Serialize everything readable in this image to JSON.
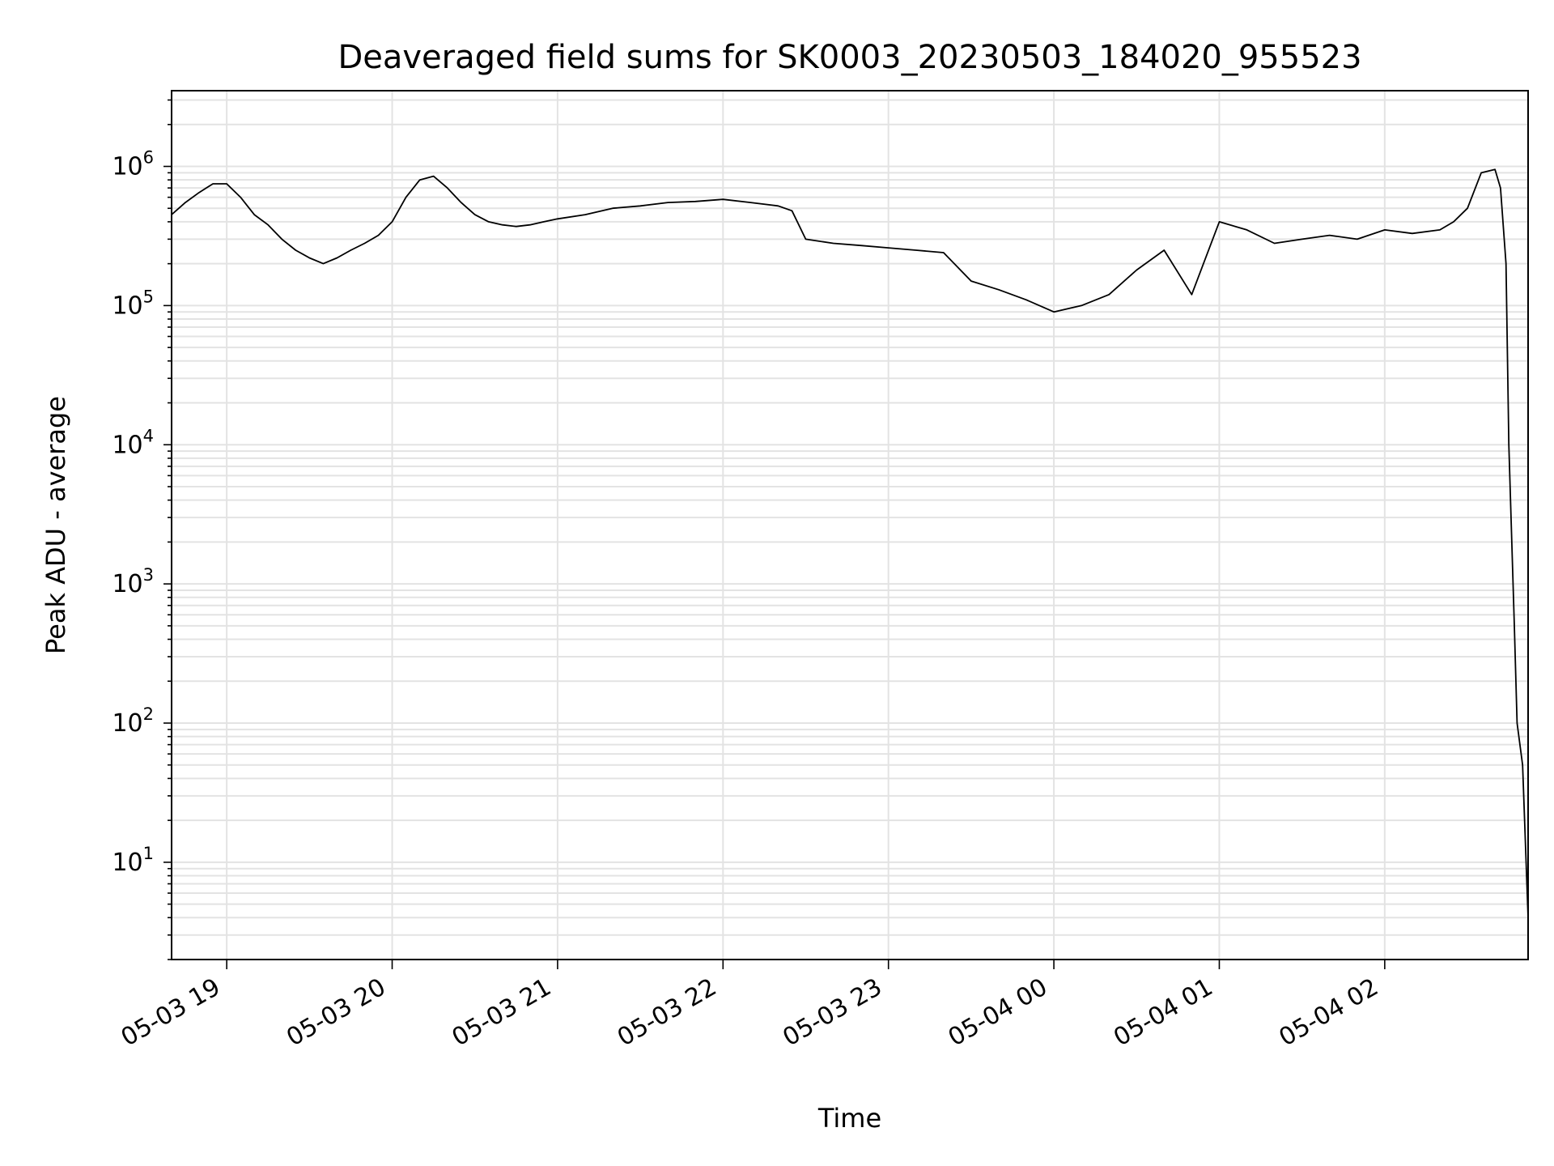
{
  "chart_data": {
    "type": "line",
    "title": "Deaveraged field sums for SK0003_20230503_184020_955523",
    "xlabel": "Time",
    "ylabel": "Peak ADU - average",
    "yscale": "log",
    "ylim": [
      2,
      3500000
    ],
    "xlim": [
      "2023-05-03 18:40",
      "2023-05-04 02:52"
    ],
    "grid": true,
    "line_color": "#000000",
    "x_ticks": [
      {
        "value": "2023-05-03 19:00",
        "label": "05-03 19"
      },
      {
        "value": "2023-05-03 20:00",
        "label": "05-03 20"
      },
      {
        "value": "2023-05-03 21:00",
        "label": "05-03 21"
      },
      {
        "value": "2023-05-03 22:00",
        "label": "05-03 22"
      },
      {
        "value": "2023-05-03 23:00",
        "label": "05-03 23"
      },
      {
        "value": "2023-05-04 00:00",
        "label": "05-04 00"
      },
      {
        "value": "2023-05-04 01:00",
        "label": "05-04 01"
      },
      {
        "value": "2023-05-04 02:00",
        "label": "05-04 02"
      }
    ],
    "y_ticks": [
      {
        "value": 10,
        "exp": "1"
      },
      {
        "value": 100,
        "exp": "2"
      },
      {
        "value": 1000,
        "exp": "3"
      },
      {
        "value": 10000,
        "exp": "4"
      },
      {
        "value": 100000,
        "exp": "5"
      },
      {
        "value": 1000000,
        "exp": "6"
      }
    ],
    "series": [
      {
        "x": [
          "2023-05-03 18:40",
          "2023-05-03 18:45",
          "2023-05-03 18:50",
          "2023-05-03 18:55",
          "2023-05-03 19:00",
          "2023-05-03 19:05",
          "2023-05-03 19:10",
          "2023-05-03 19:15",
          "2023-05-03 19:20",
          "2023-05-03 19:25",
          "2023-05-03 19:30",
          "2023-05-03 19:35",
          "2023-05-03 19:40",
          "2023-05-03 19:45",
          "2023-05-03 19:50",
          "2023-05-03 19:55",
          "2023-05-03 20:00",
          "2023-05-03 20:05",
          "2023-05-03 20:10",
          "2023-05-03 20:15",
          "2023-05-03 20:20",
          "2023-05-03 20:25",
          "2023-05-03 20:30",
          "2023-05-03 20:35",
          "2023-05-03 20:40",
          "2023-05-03 20:45",
          "2023-05-03 20:50",
          "2023-05-03 20:55",
          "2023-05-03 21:00",
          "2023-05-03 21:10",
          "2023-05-03 21:20",
          "2023-05-03 21:30",
          "2023-05-03 21:40",
          "2023-05-03 21:50",
          "2023-05-03 22:00",
          "2023-05-03 22:10",
          "2023-05-03 22:20",
          "2023-05-03 22:25",
          "2023-05-03 22:30",
          "2023-05-03 22:40",
          "2023-05-03 22:50",
          "2023-05-03 23:00",
          "2023-05-03 23:10",
          "2023-05-03 23:20",
          "2023-05-03 23:30",
          "2023-05-03 23:40",
          "2023-05-03 23:50",
          "2023-05-04 00:00",
          "2023-05-04 00:10",
          "2023-05-04 00:20",
          "2023-05-04 00:30",
          "2023-05-04 00:40",
          "2023-05-04 00:50",
          "2023-05-04 01:00",
          "2023-05-04 01:10",
          "2023-05-04 01:20",
          "2023-05-04 01:30",
          "2023-05-04 01:40",
          "2023-05-04 01:50",
          "2023-05-04 02:00",
          "2023-05-04 02:10",
          "2023-05-04 02:20",
          "2023-05-04 02:25",
          "2023-05-04 02:30",
          "2023-05-04 02:35",
          "2023-05-04 02:40",
          "2023-05-04 02:42",
          "2023-05-04 02:44",
          "2023-05-04 02:45",
          "2023-05-04 02:47",
          "2023-05-04 02:48",
          "2023-05-04 02:50",
          "2023-05-04 02:52"
        ],
        "y": [
          450000,
          550000,
          650000,
          750000,
          750000,
          600000,
          450000,
          380000,
          300000,
          250000,
          220000,
          200000,
          220000,
          250000,
          280000,
          320000,
          400000,
          600000,
          800000,
          850000,
          700000,
          550000,
          450000,
          400000,
          380000,
          370000,
          380000,
          400000,
          420000,
          450000,
          500000,
          520000,
          550000,
          560000,
          580000,
          550000,
          520000,
          480000,
          300000,
          280000,
          270000,
          260000,
          250000,
          240000,
          150000,
          130000,
          110000,
          90000,
          100000,
          120000,
          180000,
          250000,
          120000,
          400000,
          350000,
          280000,
          300000,
          320000,
          300000,
          350000,
          330000,
          350000,
          400000,
          500000,
          900000,
          950000,
          700000,
          200000,
          10000,
          500,
          100,
          50,
          4
        ]
      }
    ]
  }
}
